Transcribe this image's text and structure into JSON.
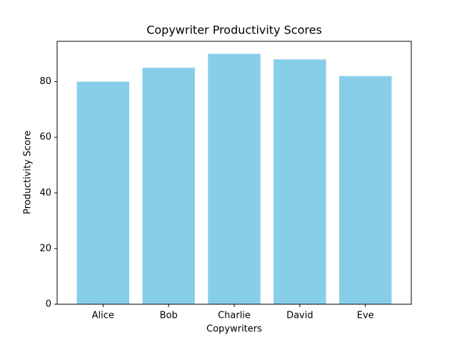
{
  "chart_data": {
    "type": "bar",
    "title": "Copywriter Productivity Scores",
    "x_label": "Copywriters",
    "y_label": "Productivity Score",
    "categories": [
      "Alice",
      "Bob",
      "Charlie",
      "David",
      "Eve"
    ],
    "values": [
      80,
      85,
      90,
      88,
      82
    ],
    "color": "#87ceeb",
    "ylim": [
      0,
      94.5
    ],
    "yticks": [
      0,
      20,
      40,
      60,
      80
    ],
    "grid": false
  }
}
